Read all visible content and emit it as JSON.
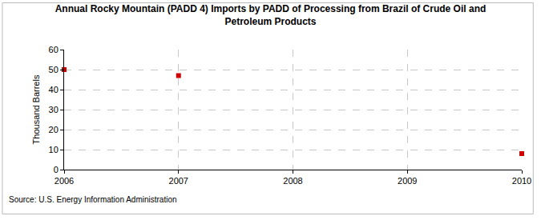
{
  "chart_data": {
    "type": "scatter",
    "title": "Annual Rocky Mountain (PADD 4) Imports by PADD of Processing from Brazil of Crude Oil and\nPetroleum Products",
    "y_label": "Thousand Barrels",
    "source": "Source: U.S. Energy Information Administration",
    "x": [
      2006,
      2007,
      2010
    ],
    "values": [
      50,
      47,
      8
    ],
    "color": "#cc0000",
    "marker": "square",
    "xlim": [
      2006,
      2010
    ],
    "xticks": [
      2006,
      2007,
      2008,
      2009,
      2010
    ],
    "ylim": [
      0,
      60
    ],
    "yticks": [
      0,
      10,
      20,
      30,
      40,
      50,
      60
    ],
    "grid": true
  }
}
